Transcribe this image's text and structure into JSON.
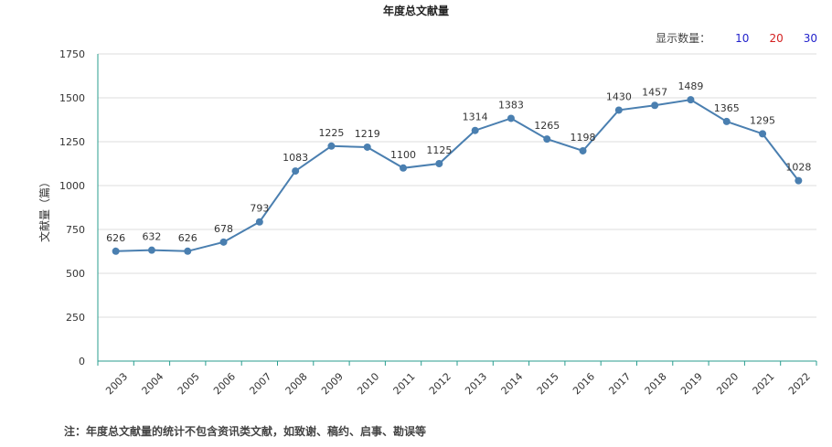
{
  "header": {
    "title": "年度总文献量",
    "count_label": "显示数量：",
    "count_options": [
      {
        "label": "10",
        "color": "#2222cc"
      },
      {
        "label": "20",
        "color": "#d42020"
      },
      {
        "label": "30",
        "color": "#2222cc"
      }
    ]
  },
  "footer": {
    "note": "注：年度总文献量的统计不包含资讯类文献，如致谢、稿约、启事、勘误等"
  },
  "chart_data": {
    "type": "line",
    "title": "年度总文献量",
    "xlabel": "",
    "ylabel": "文献量（篇）",
    "ylim": [
      0,
      1750
    ],
    "yticks": [
      0,
      250,
      500,
      750,
      1000,
      1250,
      1500,
      1750
    ],
    "grid": true,
    "line_color": "#4a7fb0",
    "categories": [
      "2003",
      "2004",
      "2005",
      "2006",
      "2007",
      "2008",
      "2009",
      "2010",
      "2011",
      "2012",
      "2013",
      "2014",
      "2015",
      "2016",
      "2017",
      "2018",
      "2019",
      "2020",
      "2021",
      "2022"
    ],
    "series": [
      {
        "values": [
          626,
          632,
          626,
          678,
          793,
          1083,
          1225,
          1219,
          1100,
          1125,
          1314,
          1383,
          1265,
          1198,
          1430,
          1457,
          1489,
          1365,
          1295,
          1028
        ]
      }
    ]
  }
}
